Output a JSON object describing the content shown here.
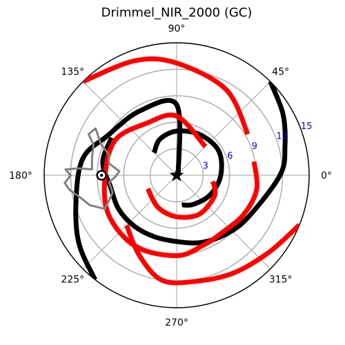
{
  "chart_data": {
    "type": "polar",
    "title": "Drimmel_NIR_2000 (GC)",
    "grid": true,
    "angular_ticks_deg": [
      0,
      45,
      90,
      135,
      180,
      225,
      270,
      315
    ],
    "angular_tick_labels": [
      "0°",
      "45°",
      "90°",
      "135°",
      "180°",
      "225°",
      "270°",
      "315°"
    ],
    "radial_ticks": [
      3,
      6,
      9,
      12,
      15
    ],
    "radial_tick_labels": [
      "3",
      "6",
      "9",
      "12",
      "15"
    ],
    "radial_label_angle_deg": 22,
    "rlim": [
      0,
      15
    ],
    "center_marker": "star",
    "sun_marker": {
      "r": 8.5,
      "theta_deg": 180,
      "marker": "circled-dot"
    },
    "series": [
      {
        "color": "#000000",
        "points": [
          {
            "theta": 280,
            "r": 3.4
          },
          {
            "theta": 300,
            "r": 3.8
          },
          {
            "theta": 330,
            "r": 4.4
          },
          {
            "theta": 0,
            "r": 5.0
          },
          {
            "theta": 30,
            "r": 5.5
          },
          {
            "theta": 60,
            "r": 5.3
          },
          {
            "theta": 90,
            "r": 5.0
          },
          {
            "theta": 115,
            "r": 4.5
          },
          {
            "theta": 135,
            "r": 3.6
          }
        ]
      },
      {
        "color": "#000000",
        "points": [
          {
            "theta": 150,
            "r": 8.5
          },
          {
            "theta": 170,
            "r": 8.5
          },
          {
            "theta": 190,
            "r": 7.6
          },
          {
            "theta": 210,
            "r": 7.6
          },
          {
            "theta": 230,
            "r": 7.5
          },
          {
            "theta": 250,
            "r": 7.4
          },
          {
            "theta": 270,
            "r": 7.5
          },
          {
            "theta": 290,
            "r": 8.1
          },
          {
            "theta": 310,
            "r": 8.7
          },
          {
            "theta": 330,
            "r": 9.4
          },
          {
            "theta": 0,
            "r": 11.7
          },
          {
            "theta": 15,
            "r": 12.7
          },
          {
            "theta": 30,
            "r": 13.9
          },
          {
            "theta": 45,
            "r": 15.0
          }
        ]
      },
      {
        "color": "#000000",
        "points": [
          {
            "theta": 28,
            "r": 0.2
          },
          {
            "theta": 90,
            "r": 8.0
          },
          {
            "theta": 120,
            "r": 8.4
          },
          {
            "theta": 150,
            "r": 9.0
          },
          {
            "theta": 170,
            "r": 10.8
          },
          {
            "theta": 195,
            "r": 11.8
          },
          {
            "theta": 215,
            "r": 13.5
          },
          {
            "theta": 232,
            "r": 15.0
          }
        ]
      },
      {
        "color": "#ff0000",
        "points": [
          {
            "theta": 205,
            "r": 3.6
          },
          {
            "theta": 240,
            "r": 4.2
          },
          {
            "theta": 270,
            "r": 4.7
          },
          {
            "theta": 300,
            "r": 5.1
          },
          {
            "theta": 330,
            "r": 4.9
          },
          {
            "theta": 345,
            "r": 4.4
          },
          {
            "theta": 350,
            "r": 4.1
          }
        ]
      },
      {
        "color": "#ff0000",
        "points": [
          {
            "theta": 45,
            "r": 4.6
          },
          {
            "theta": 90,
            "r": 6.7
          },
          {
            "theta": 120,
            "r": 6.8
          },
          {
            "theta": 150,
            "r": 8.0
          },
          {
            "theta": 180,
            "r": 8.1
          },
          {
            "theta": 210,
            "r": 8.9
          },
          {
            "theta": 240,
            "r": 9.3
          },
          {
            "theta": 270,
            "r": 9.1
          },
          {
            "theta": 290,
            "r": 8.5
          },
          {
            "theta": 310,
            "r": 8.3
          },
          {
            "theta": 330,
            "r": 8.8
          },
          {
            "theta": 350,
            "r": 9.2
          },
          {
            "theta": 10,
            "r": 8.9
          }
        ]
      },
      {
        "color": "#ff0000",
        "points": [
          {
            "theta": 30,
            "r": 9.3
          },
          {
            "theta": 60,
            "r": 11.2
          },
          {
            "theta": 90,
            "r": 12.7
          },
          {
            "theta": 110,
            "r": 13.8
          },
          {
            "theta": 135,
            "r": 15.0
          }
        ]
      },
      {
        "color": "#ff0000",
        "points": [
          {
            "theta": 225,
            "r": 8.0
          },
          {
            "theta": 245,
            "r": 10.0
          },
          {
            "theta": 262,
            "r": 12.0
          },
          {
            "theta": 280,
            "r": 12.2
          },
          {
            "theta": 300,
            "r": 12.8
          },
          {
            "theta": 320,
            "r": 13.6
          },
          {
            "theta": 338,
            "r": 15.0
          }
        ]
      }
    ],
    "contour": {
      "color": "#808080",
      "points": [
        {
          "theta": 176,
          "r": 9.6
        },
        {
          "theta": 168,
          "r": 9.8
        },
        {
          "theta": 160,
          "r": 10.0
        },
        {
          "theta": 155,
          "r": 11.0
        },
        {
          "theta": 150,
          "r": 10.6
        },
        {
          "theta": 158,
          "r": 9.2
        },
        {
          "theta": 163,
          "r": 8.0
        },
        {
          "theta": 170,
          "r": 7.8
        },
        {
          "theta": 176,
          "r": 6.5
        },
        {
          "theta": 181,
          "r": 6.9
        },
        {
          "theta": 186,
          "r": 7.7
        },
        {
          "theta": 195,
          "r": 7.5
        },
        {
          "theta": 200,
          "r": 8.1
        },
        {
          "theta": 205,
          "r": 9.0
        },
        {
          "theta": 199,
          "r": 10.4
        },
        {
          "theta": 193,
          "r": 11.2
        },
        {
          "theta": 188,
          "r": 12.2
        },
        {
          "theta": 184,
          "r": 12.7
        },
        {
          "theta": 180,
          "r": 12.0
        },
        {
          "theta": 177,
          "r": 12.6
        },
        {
          "theta": 176,
          "r": 11.2
        },
        {
          "theta": 176,
          "r": 9.6
        }
      ]
    }
  }
}
